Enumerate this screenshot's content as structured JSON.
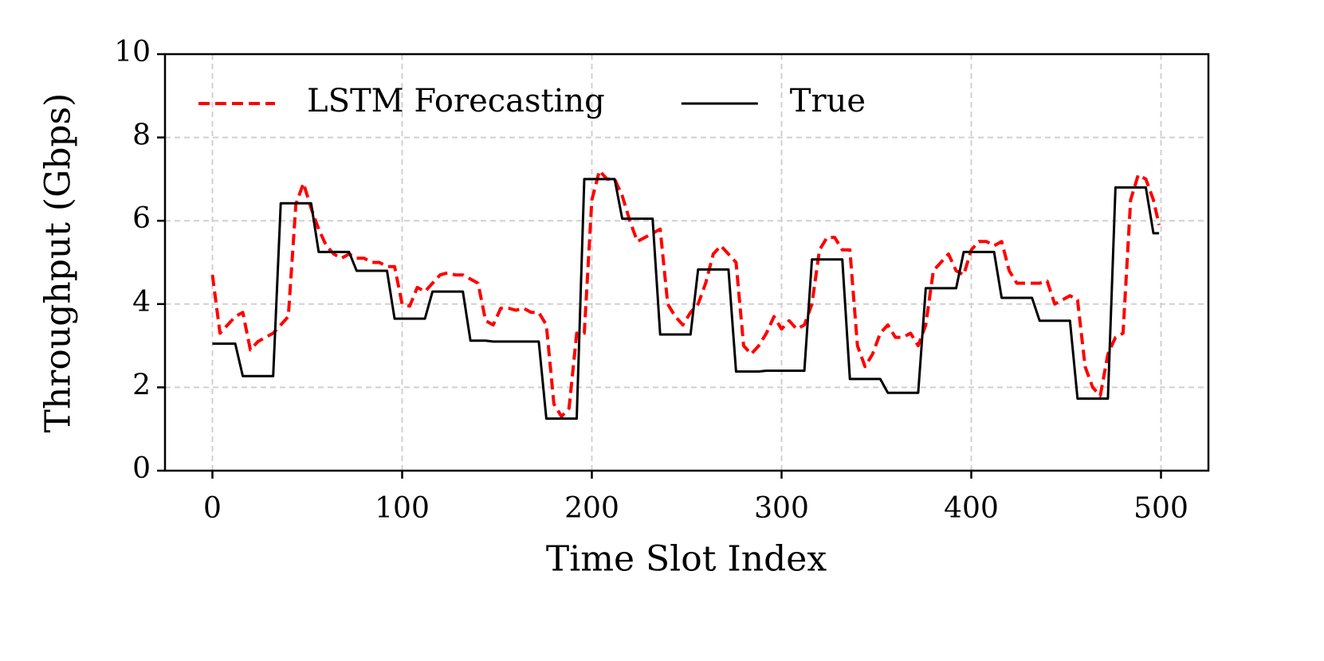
{
  "chart_data": {
    "type": "line",
    "xlabel": "Time Slot Index",
    "ylabel": "Throughput (Gbps)",
    "xlim": [
      -25,
      525
    ],
    "ylim": [
      0,
      10
    ],
    "xticks": [
      0,
      100,
      200,
      300,
      400,
      500
    ],
    "yticks": [
      0,
      2,
      4,
      6,
      8,
      10
    ],
    "grid": true,
    "legend": "upper left",
    "x": [
      0,
      4,
      8,
      12,
      16,
      20,
      24,
      28,
      32,
      36,
      40,
      44,
      48,
      52,
      56,
      60,
      64,
      68,
      72,
      76,
      80,
      84,
      88,
      92,
      96,
      100,
      104,
      108,
      112,
      116,
      120,
      124,
      128,
      132,
      136,
      140,
      144,
      148,
      152,
      156,
      160,
      164,
      168,
      172,
      176,
      180,
      184,
      188,
      192,
      196,
      200,
      204,
      208,
      212,
      216,
      220,
      224,
      228,
      232,
      236,
      240,
      244,
      248,
      252,
      256,
      260,
      264,
      268,
      272,
      276,
      280,
      284,
      288,
      292,
      296,
      300,
      304,
      308,
      312,
      316,
      320,
      324,
      328,
      332,
      336,
      340,
      344,
      348,
      352,
      356,
      360,
      364,
      368,
      372,
      376,
      380,
      384,
      388,
      392,
      396,
      400,
      404,
      408,
      412,
      416,
      420,
      424,
      428,
      432,
      436,
      440,
      444,
      448,
      452,
      456,
      460,
      464,
      468,
      472,
      476,
      480,
      484,
      488,
      492,
      496,
      499
    ],
    "series": [
      {
        "name": "LSTM Forecasting",
        "color": "#ff0000",
        "dash": true,
        "values": [
          4.7,
          3.3,
          3.5,
          3.7,
          3.8,
          2.9,
          3.1,
          3.2,
          3.3,
          3.5,
          3.7,
          6.4,
          6.9,
          6.3,
          5.8,
          5.4,
          5.2,
          5.1,
          5.2,
          5.1,
          5.1,
          5.0,
          5.0,
          4.9,
          4.9,
          4.0,
          3.95,
          4.4,
          4.3,
          4.5,
          4.7,
          4.75,
          4.7,
          4.7,
          4.6,
          4.5,
          3.6,
          3.5,
          3.9,
          3.9,
          3.85,
          3.9,
          3.8,
          3.8,
          3.5,
          1.6,
          1.3,
          1.5,
          3.3,
          3.3,
          6.5,
          7.2,
          7.0,
          7.0,
          6.6,
          6.0,
          5.5,
          5.6,
          5.7,
          5.8,
          4.0,
          3.7,
          3.5,
          3.8,
          4.0,
          4.5,
          5.2,
          5.4,
          5.2,
          5.0,
          3.0,
          2.8,
          3.0,
          3.3,
          3.7,
          3.4,
          3.6,
          3.4,
          3.5,
          4.0,
          5.3,
          5.6,
          5.6,
          5.3,
          5.3,
          3.0,
          2.5,
          2.8,
          3.3,
          3.5,
          3.2,
          3.2,
          3.3,
          3.0,
          3.5,
          4.8,
          5.0,
          5.2,
          4.8,
          4.7,
          5.3,
          5.5,
          5.5,
          5.4,
          5.5,
          4.8,
          4.5,
          4.5,
          4.5,
          4.5,
          4.55,
          4.0,
          4.1,
          4.2,
          4.1,
          2.5,
          2.0,
          1.8,
          2.8,
          3.2,
          3.3,
          6.5,
          7.1,
          7.0,
          6.5,
          5.9
        ]
      },
      {
        "name": "True",
        "color": "#000000",
        "dash": false,
        "values": [
          3.05,
          3.05,
          3.05,
          3.05,
          2.27,
          2.27,
          2.27,
          2.27,
          2.27,
          6.42,
          6.42,
          6.42,
          6.42,
          6.42,
          5.25,
          5.25,
          5.25,
          5.25,
          5.25,
          4.8,
          4.8,
          4.8,
          4.8,
          4.8,
          3.65,
          3.65,
          3.65,
          3.65,
          3.65,
          4.3,
          4.3,
          4.3,
          4.3,
          4.3,
          3.12,
          3.12,
          3.12,
          3.1,
          3.1,
          3.1,
          3.1,
          3.1,
          3.1,
          3.1,
          1.25,
          1.25,
          1.25,
          1.25,
          1.25,
          7.0,
          7.0,
          7.0,
          7.0,
          7.0,
          6.05,
          6.05,
          6.05,
          6.05,
          6.05,
          3.27,
          3.27,
          3.27,
          3.27,
          3.27,
          4.83,
          4.83,
          4.83,
          4.83,
          4.83,
          2.38,
          2.38,
          2.38,
          2.38,
          2.4,
          2.4,
          2.4,
          2.4,
          2.4,
          2.4,
          5.07,
          5.07,
          5.07,
          5.07,
          5.07,
          2.2,
          2.2,
          2.2,
          2.2,
          2.2,
          1.87,
          1.87,
          1.87,
          1.87,
          1.87,
          4.38,
          4.38,
          4.38,
          4.38,
          4.38,
          5.25,
          5.25,
          5.25,
          5.25,
          5.25,
          4.15,
          4.15,
          4.15,
          4.15,
          4.15,
          3.6,
          3.6,
          3.6,
          3.6,
          3.6,
          1.73,
          1.73,
          1.73,
          1.73,
          1.73,
          6.8,
          6.8,
          6.8,
          6.8,
          6.8,
          5.7,
          5.7
        ]
      }
    ]
  }
}
